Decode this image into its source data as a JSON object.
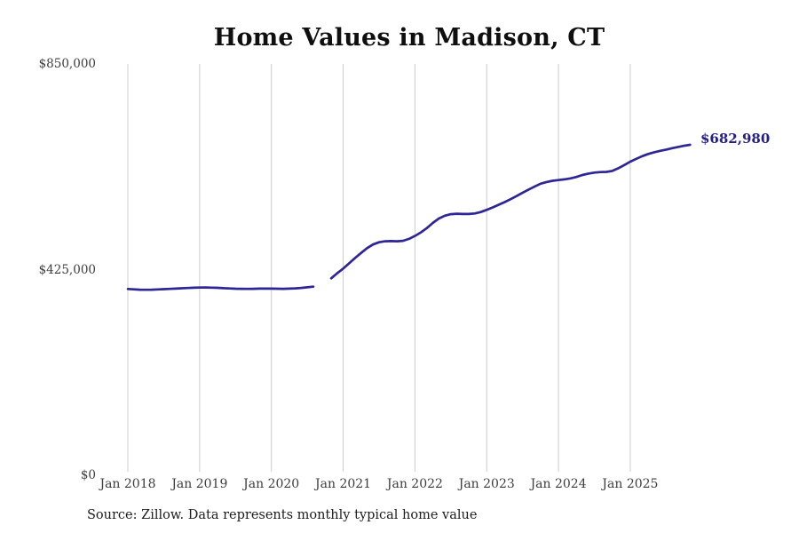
{
  "page": {
    "title": "Home Values in Madison, CT",
    "source_note": "Source: Zillow. Data represents monthly typical home value",
    "last_value_label": "$682,980"
  },
  "colors": {
    "line": "#2e2596",
    "annotation": "#252085",
    "grid": "#cccccc",
    "axis_text": "#3d3d3d"
  },
  "chart_data": {
    "type": "line",
    "title": "Home Values in Madison, CT",
    "xlabel": "",
    "ylabel": "",
    "ylim": [
      0,
      850000
    ],
    "grid": "vertical-only",
    "legend": "none",
    "annotation": "$682,980",
    "source": "Source: Zillow. Data represents monthly typical home value",
    "y_ticks": [
      {
        "value": 0,
        "label": "$0"
      },
      {
        "value": 425000,
        "label": "$425,000"
      },
      {
        "value": 850000,
        "label": "$850,000"
      }
    ],
    "x_ticks": [
      {
        "month_index": 0,
        "label": "Jan 2018"
      },
      {
        "month_index": 12,
        "label": "Jan 2019"
      },
      {
        "month_index": 24,
        "label": "Jan 2020"
      },
      {
        "month_index": 36,
        "label": "Jan 2021"
      },
      {
        "month_index": 48,
        "label": "Jan 2022"
      },
      {
        "month_index": 60,
        "label": "Jan 2023"
      },
      {
        "month_index": 72,
        "label": "Jan 2024"
      },
      {
        "month_index": 84,
        "label": "Jan 2025"
      }
    ],
    "series": [
      {
        "name": "Monthly typical home value",
        "months": [
          "Jan 2018",
          "Feb 2018",
          "Mar 2018",
          "Apr 2018",
          "May 2018",
          "Jun 2018",
          "Jul 2018",
          "Aug 2018",
          "Sep 2018",
          "Oct 2018",
          "Nov 2018",
          "Dec 2018",
          "Jan 2019",
          "Feb 2019",
          "Mar 2019",
          "Apr 2019",
          "May 2019",
          "Jun 2019",
          "Jul 2019",
          "Aug 2019",
          "Sep 2019",
          "Oct 2019",
          "Nov 2019",
          "Dec 2019",
          "Jan 2020",
          "Feb 2020",
          "Mar 2020",
          "Apr 2020",
          "May 2020",
          "Jun 2020",
          "Jul 2020",
          "Aug 2020",
          "Sep 2020",
          "Oct 2020",
          "Nov 2020",
          "Dec 2020",
          "Jan 2021",
          "Feb 2021",
          "Mar 2021",
          "Apr 2021",
          "May 2021",
          "Jun 2021",
          "Jul 2021",
          "Aug 2021",
          "Sep 2021",
          "Oct 2021",
          "Nov 2021",
          "Dec 2021",
          "Jan 2022",
          "Feb 2022",
          "Mar 2022",
          "Apr 2022",
          "May 2022",
          "Jun 2022",
          "Jul 2022",
          "Aug 2022",
          "Sep 2022",
          "Oct 2022",
          "Nov 2022",
          "Dec 2022",
          "Jan 2023",
          "Feb 2023",
          "Mar 2023",
          "Apr 2023",
          "May 2023",
          "Jun 2023",
          "Jul 2023",
          "Aug 2023",
          "Sep 2023",
          "Oct 2023",
          "Nov 2023",
          "Dec 2023",
          "Jan 2024",
          "Feb 2024",
          "Mar 2024",
          "Apr 2024",
          "May 2024",
          "Jun 2024",
          "Jul 2024",
          "Aug 2024",
          "Sep 2024",
          "Oct 2024",
          "Nov 2024",
          "Dec 2024",
          "Jan 2025",
          "Feb 2025",
          "Mar 2025",
          "Apr 2025",
          "May 2025",
          "Jun 2025",
          "Jul 2025",
          "Aug 2025",
          "Sep 2025",
          "Oct 2025",
          "Nov 2025"
        ],
        "values": [
          385000,
          384200,
          383600,
          383400,
          383600,
          384000,
          384600,
          385200,
          385800,
          386400,
          387000,
          387600,
          388000,
          388100,
          387800,
          387300,
          386700,
          386100,
          385600,
          385300,
          385200,
          385400,
          385700,
          385900,
          385800,
          385500,
          385400,
          385700,
          386300,
          387200,
          388400,
          389800,
          null,
          null,
          407000,
          417500,
          427000,
          438000,
          449000,
          459500,
          469500,
          477000,
          481500,
          483500,
          484000,
          483500,
          484500,
          488500,
          494500,
          502000,
          511000,
          521500,
          530500,
          536500,
          539500,
          540500,
          540000,
          540000,
          541000,
          544000,
          548500,
          553500,
          559000,
          564500,
          570500,
          577000,
          584000,
          590500,
          596500,
          602500,
          606000,
          608500,
          610000,
          611500,
          613500,
          616500,
          620500,
          623500,
          625500,
          626500,
          627000,
          629000,
          634500,
          641000,
          648000,
          654000,
          659500,
          664000,
          667500,
          670500,
          673000,
          676000,
          678500,
          681000,
          682980
        ]
      }
    ]
  }
}
